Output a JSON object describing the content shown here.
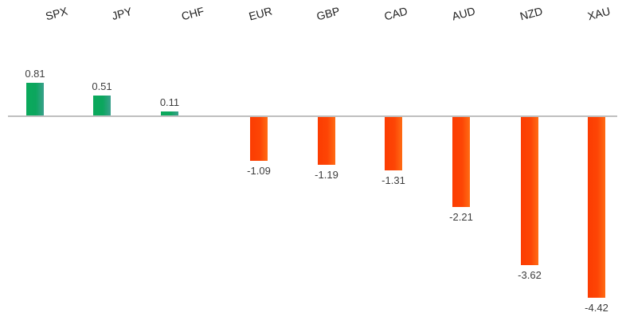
{
  "chart_data": {
    "type": "bar",
    "title": "",
    "xlabel": "",
    "ylabel": "",
    "categories": [
      "SPX",
      "JPY",
      "CHF",
      "EUR",
      "GBP",
      "CAD",
      "AUD",
      "NZD",
      "XAU"
    ],
    "values": [
      0.81,
      0.51,
      0.11,
      -1.09,
      -1.19,
      -1.31,
      -2.21,
      -3.62,
      -4.42
    ],
    "value_labels": [
      "0.81",
      "0.51",
      "0.11",
      "-1.09",
      "-1.19",
      "-1.31",
      "-2.21",
      "-3.62",
      "-4.42"
    ],
    "ylim": [
      -4.42,
      0.81
    ],
    "grid": "off",
    "legend": "none",
    "category_label_position": "top",
    "data_labels": "outside-end",
    "colors": {
      "positive_bar_start": "#0aa95b",
      "positive_bar_mid": "#0ca65e",
      "positive_bar_end": "#3aa08c",
      "negative_bar_start": "#fc3c02",
      "negative_bar_mid": "#fd4505",
      "negative_bar_end": "#ff6c14",
      "axis_line": "#bfbfbf",
      "value_label_text": "#3d3d3d",
      "category_label_text": "#212121",
      "background": "#ffffff"
    }
  }
}
